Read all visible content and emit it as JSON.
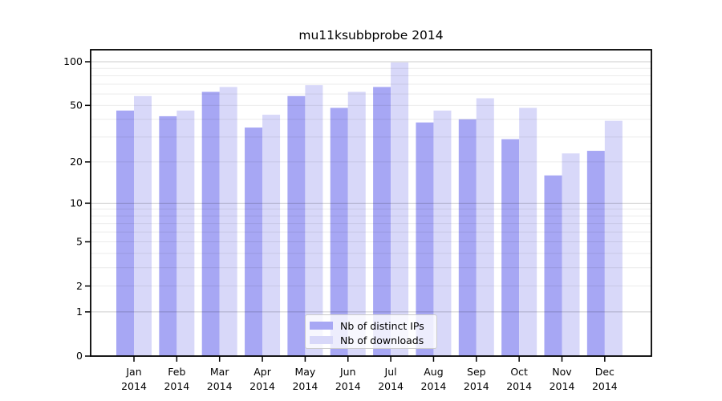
{
  "chart_data": {
    "type": "bar",
    "title": "mu11ksubbprobe 2014",
    "categories": [
      "Jan 2014",
      "Feb 2014",
      "Mar 2014",
      "Apr 2014",
      "May 2014",
      "Jun 2014",
      "Jul 2014",
      "Aug 2014",
      "Sep 2014",
      "Oct 2014",
      "Nov 2014",
      "Dec 2014"
    ],
    "series": [
      {
        "name": "Nb of distinct IPs",
        "color": "#a7a7f4",
        "values": [
          46,
          42,
          62,
          35,
          58,
          48,
          67,
          38,
          40,
          29,
          16,
          24
        ]
      },
      {
        "name": "Nb of downloads",
        "color": "#d8d8f9",
        "values": [
          58,
          46,
          67,
          43,
          69,
          62,
          99,
          46,
          56,
          48,
          23,
          39
        ]
      }
    ],
    "xlabel": "",
    "ylabel": "",
    "y_scale": "log10(1+x)",
    "y_tick_labels": [
      "100",
      "50",
      "20",
      "10",
      "5",
      "2",
      "1",
      "0"
    ],
    "y_tick_values": [
      100,
      50,
      20,
      10,
      5,
      2,
      1,
      0
    ],
    "y_minor_grid_values": [
      2,
      3,
      4,
      5,
      6,
      7,
      8,
      9,
      20,
      30,
      40,
      50,
      60,
      70,
      80,
      90
    ],
    "y_major_grid_values": [
      1,
      10,
      100
    ],
    "ylim": [
      0,
      120
    ],
    "grid": "horizontal",
    "legend_position": "bottom-center",
    "colors": {
      "axis": "#000000",
      "minor_grid": "rgba(0,0,0,0.08)",
      "major_grid": "rgba(0,0,0,0.20)"
    }
  }
}
